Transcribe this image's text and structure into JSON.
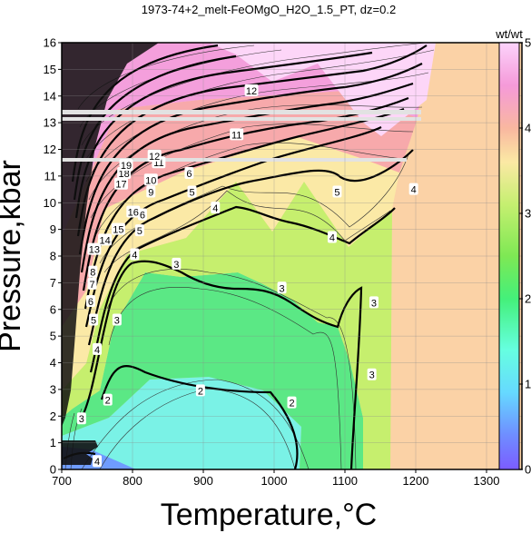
{
  "chart_data": {
    "type": "heatmap",
    "title": "1973-74+2_melt-FeOMgO_H2O_1.5_PT, dz=0.2",
    "xlabel": "Temperature,°C",
    "ylabel": "Pressure,kbar",
    "xlim": [
      700,
      1350
    ],
    "ylim": [
      0,
      16
    ],
    "x_ticks": [
      "700",
      "800",
      "900",
      "1000",
      "1100",
      "1200",
      "1300"
    ],
    "y_ticks": [
      "0",
      "1",
      "2",
      "3",
      "4",
      "5",
      "6",
      "7",
      "8",
      "9",
      "10",
      "11",
      "12",
      "13",
      "14",
      "15",
      "16"
    ],
    "grid": true,
    "colorbar": {
      "label": "wt/wt",
      "range": [
        0,
        5
      ],
      "ticks": [
        "0",
        "1",
        "2",
        "3",
        "4",
        "5"
      ],
      "placement": "right"
    },
    "contour_labels": [
      {
        "text": "2",
        "x": 765,
        "y": 2.6
      },
      {
        "text": "2",
        "x": 896,
        "y": 2.95
      },
      {
        "text": "2",
        "x": 1025,
        "y": 2.5
      },
      {
        "text": "3",
        "x": 728,
        "y": 1.9
      },
      {
        "text": "3",
        "x": 778,
        "y": 5.6
      },
      {
        "text": "3",
        "x": 862,
        "y": 7.7
      },
      {
        "text": "3",
        "x": 1011,
        "y": 6.8
      },
      {
        "text": "3",
        "x": 1141,
        "y": 6.25
      },
      {
        "text": "3",
        "x": 1138,
        "y": 3.55
      },
      {
        "text": "4",
        "x": 750,
        "y": 4.5
      },
      {
        "text": "4",
        "x": 803,
        "y": 8.05
      },
      {
        "text": "4",
        "x": 917,
        "y": 9.8
      },
      {
        "text": "4",
        "x": 1082,
        "y": 8.7
      },
      {
        "text": "4",
        "x": 1197,
        "y": 10.5
      },
      {
        "text": "4",
        "x": 750,
        "y": 0.3
      },
      {
        "text": "5",
        "x": 745,
        "y": 5.6
      },
      {
        "text": "5",
        "x": 810,
        "y": 8.95
      },
      {
        "text": "5",
        "x": 884,
        "y": 10.4
      },
      {
        "text": "5",
        "x": 1089,
        "y": 10.4
      },
      {
        "text": "6",
        "x": 741,
        "y": 6.3
      },
      {
        "text": "6",
        "x": 814,
        "y": 9.55
      },
      {
        "text": "6",
        "x": 880,
        "y": 11.1
      },
      {
        "text": "7",
        "x": 743,
        "y": 6.95
      },
      {
        "text": "8",
        "x": 744,
        "y": 7.4
      },
      {
        "text": "9",
        "x": 826,
        "y": 10.4
      },
      {
        "text": "10",
        "x": 826,
        "y": 10.85
      },
      {
        "text": "11",
        "x": 837,
        "y": 11.5
      },
      {
        "text": "11",
        "x": 947,
        "y": 12.55
      },
      {
        "text": "12",
        "x": 831,
        "y": 11.75
      },
      {
        "text": "12",
        "x": 968,
        "y": 14.2
      },
      {
        "text": "13",
        "x": 746,
        "y": 8.25
      },
      {
        "text": "14",
        "x": 761,
        "y": 8.6
      },
      {
        "text": "15",
        "x": 780,
        "y": 9.0
      },
      {
        "text": "16",
        "x": 801,
        "y": 9.65
      },
      {
        "text": "17",
        "x": 784,
        "y": 10.7
      },
      {
        "text": "18",
        "x": 788,
        "y": 11.1
      },
      {
        "text": "19",
        "x": 791,
        "y": 11.4
      }
    ]
  }
}
